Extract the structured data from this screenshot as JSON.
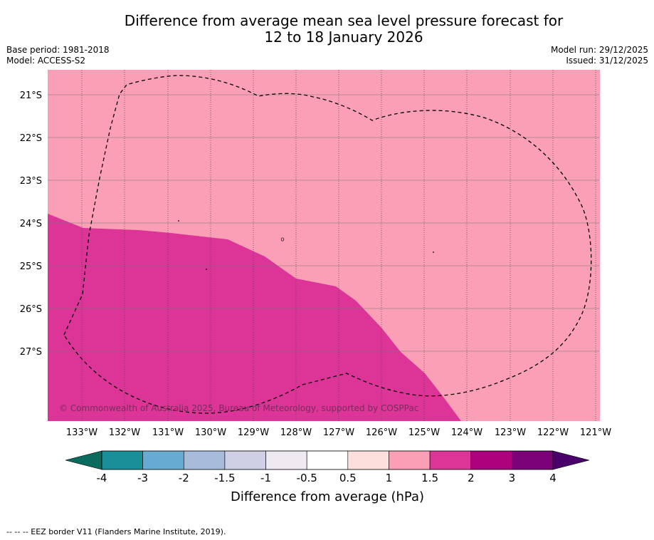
{
  "title": {
    "line1": "Difference from average mean sea level pressure forecast for",
    "line2": "12 to 18 January 2026"
  },
  "meta": {
    "base_period": "Base period: 1981-2018",
    "model": "Model: ACCESS-S2",
    "model_run": "Model run: 29/12/2025",
    "issued": "Issued: 31/12/2025"
  },
  "map": {
    "latitude_labels": [
      "21°S",
      "22°S",
      "23°S",
      "24°S",
      "25°S",
      "26°S",
      "27°S"
    ],
    "longitude_labels": [
      "133°W",
      "132°W",
      "131°W",
      "130°W",
      "129°W",
      "128°W",
      "127°W",
      "126°W",
      "125°W",
      "124°W",
      "123°W",
      "122°W",
      "121°W"
    ],
    "copyright": "© Commonwealth of Australia 2025, Bureau of Meteorology, supported by COSPPac",
    "region_colors": {
      "range_1_to_1_5": "#fa9fb5",
      "range_1_5_to_2": "#dd3497"
    }
  },
  "colorbar": {
    "ticks": [
      "-4",
      "-3",
      "-2",
      "-1.5",
      "-1",
      "-0.5",
      "0.5",
      "1",
      "1.5",
      "2",
      "3",
      "4"
    ],
    "colors": [
      "#1b8f99",
      "#67aad2",
      "#a7bbdb",
      "#cfd0e6",
      "#efe9f2",
      "#ffffff",
      "#fde0dd",
      "#fa9fb5",
      "#dd3497",
      "#ae017e",
      "#7a0177"
    ],
    "low_extension_color": "#0c6b5f",
    "high_extension_color": "#49006a",
    "label": "Difference from average (hPa)"
  },
  "footnote": "--  --  -- EEZ border V11 (Flanders Marine Institute, 2019)."
}
